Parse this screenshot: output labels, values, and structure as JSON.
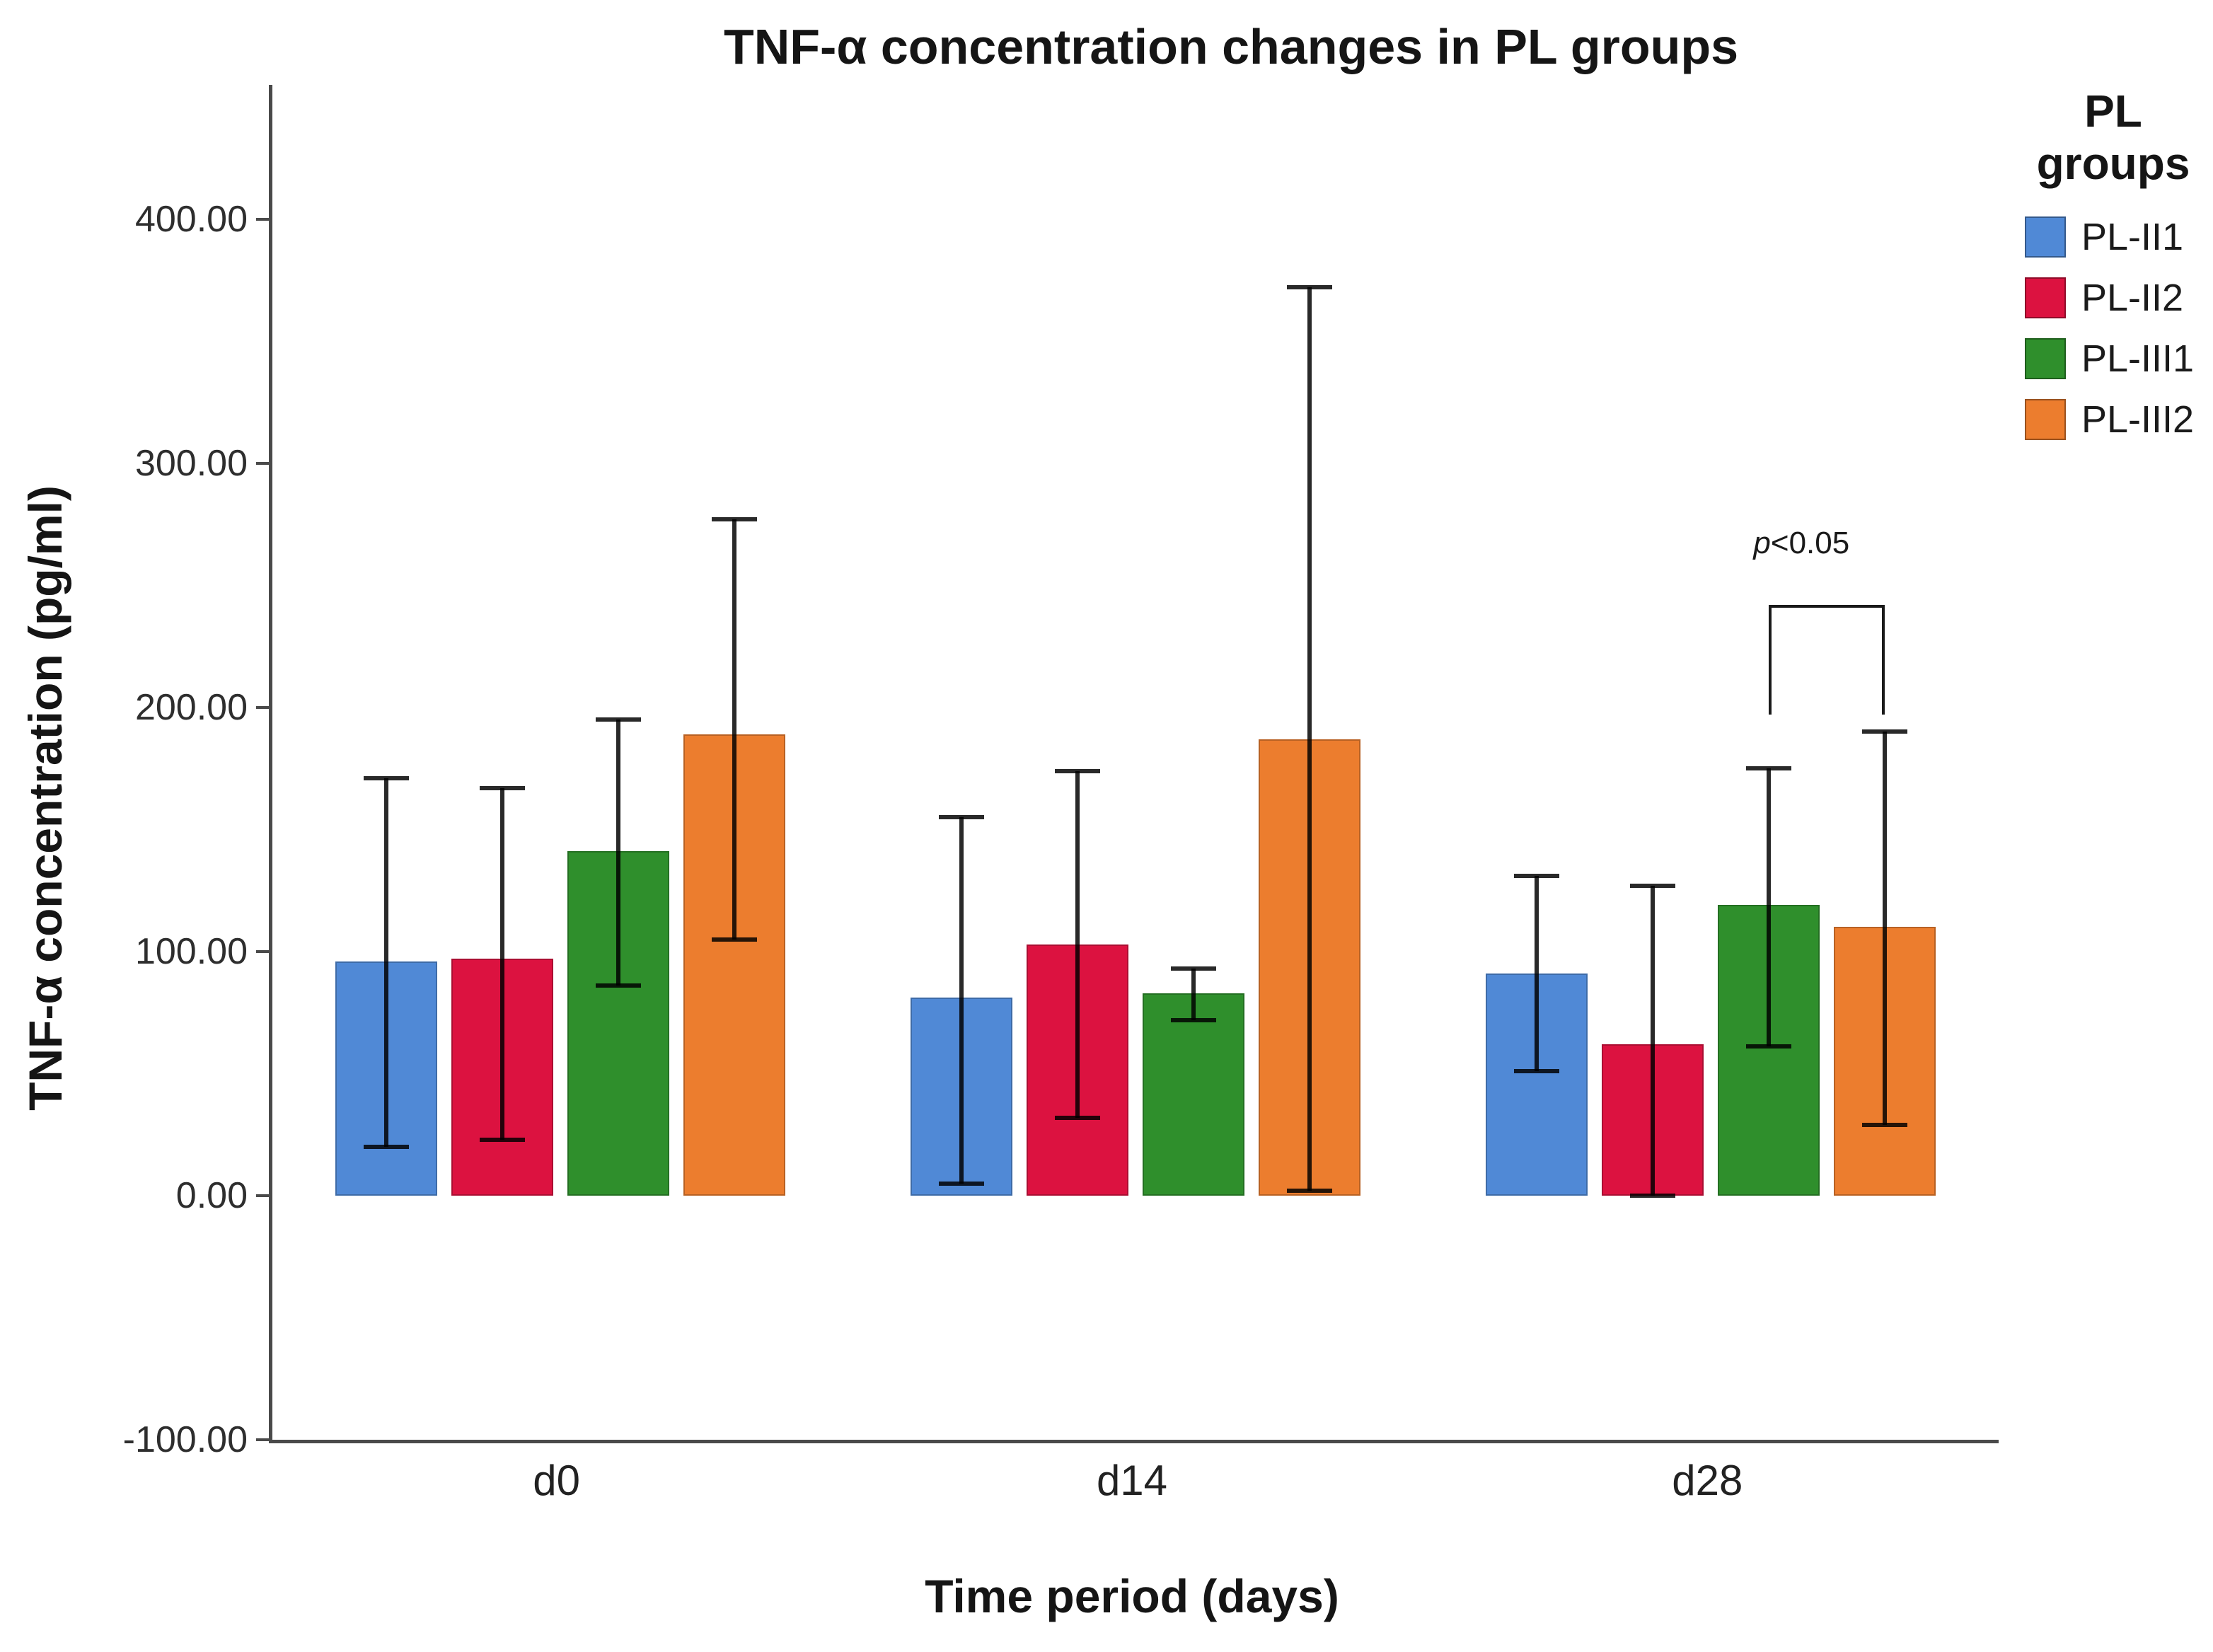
{
  "chart_data": {
    "type": "bar",
    "title": "TNF-α concentration changes in PL groups",
    "xlabel": "Time period (days)",
    "ylabel": "TNF-α concentration (pg/ml)",
    "legend_title": "PL groups",
    "legend_position": "right",
    "grid": false,
    "categories": [
      "d0",
      "d14",
      "d28"
    ],
    "series": [
      {
        "name": "PL-II1",
        "color": "#5089D6",
        "values": [
          96,
          81,
          91
        ],
        "err_low": [
          20,
          5,
          51
        ],
        "err_high": [
          171,
          155,
          131
        ]
      },
      {
        "name": "PL-II2",
        "color": "#DC1240",
        "values": [
          97,
          103,
          62
        ],
        "err_low": [
          23,
          32,
          0
        ],
        "err_high": [
          167,
          174,
          127
        ]
      },
      {
        "name": "PL-III1",
        "color": "#2F8F2C",
        "values": [
          141,
          83,
          119
        ],
        "err_low": [
          86,
          72,
          61
        ],
        "err_high": [
          195,
          93,
          175
        ]
      },
      {
        "name": "PL-III2",
        "color": "#EC7D2E",
        "values": [
          189,
          187,
          110
        ],
        "err_low": [
          105,
          2,
          29
        ],
        "err_high": [
          277,
          372,
          190
        ]
      }
    ],
    "ylim": [
      -100,
      455
    ],
    "baseline_value": 0,
    "yticks": [
      {
        "label": "400.00",
        "value": 400
      },
      {
        "label": "300.00",
        "value": 300
      },
      {
        "label": "200.00",
        "value": 200
      },
      {
        "label": "100.00",
        "value": 100
      },
      {
        "label": "0.00",
        "value": 0
      },
      {
        "label": "-100.00",
        "value": -100
      }
    ],
    "annotation": {
      "text_italic": "p",
      "text_rest": "<0.05",
      "category_index": 2,
      "from_series_index": 2,
      "to_series_index": 3,
      "bracket_top_value": 242,
      "bracket_leg_end_value": 197
    }
  },
  "colors": {
    "axis": "#4a4a4a",
    "title_text": "#151515",
    "tick_text": "#2e2e2e",
    "error_bar": "rgba(0,0,0,0.84)"
  }
}
